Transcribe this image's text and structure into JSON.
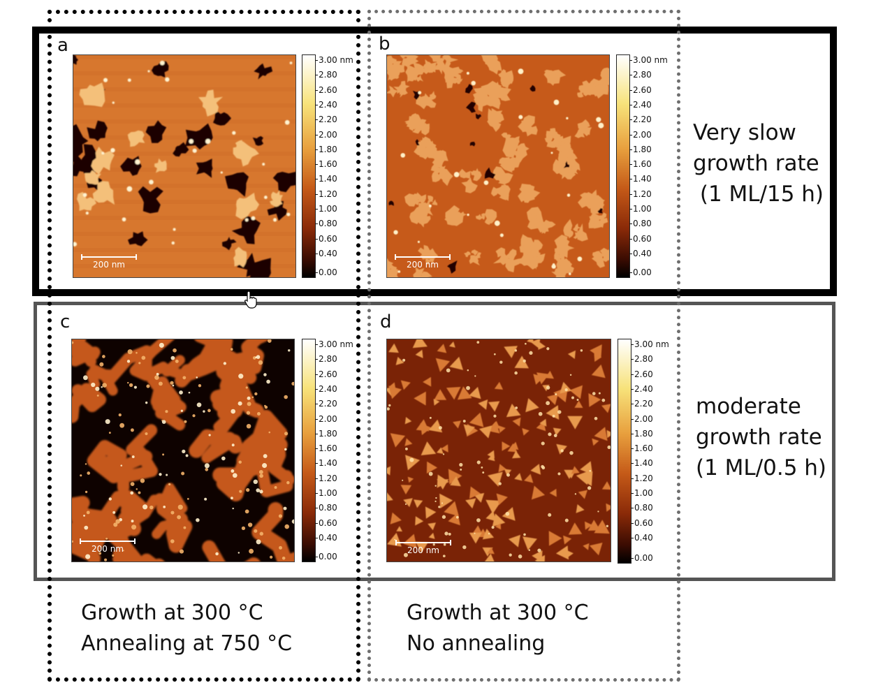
{
  "panels": [
    {
      "letter": "a",
      "scale_bar": "200 nm",
      "colorbar": [
        "3.00 nm",
        "2.80",
        "2.60",
        "2.40",
        "2.20",
        "2.00",
        "1.80",
        "1.60",
        "1.40",
        "1.20",
        "1.00",
        "0.80",
        "0.60",
        "0.40",
        "0.00"
      ]
    },
    {
      "letter": "b",
      "scale_bar": "200 nm",
      "colorbar": [
        "3.00 nm",
        "2.80",
        "2.60",
        "2.40",
        "2.20",
        "2.00",
        "1.80",
        "1.60",
        "1.40",
        "1.20",
        "1.00",
        "0.80",
        "0.60",
        "0.40",
        "0.00"
      ]
    },
    {
      "letter": "c",
      "scale_bar": "200 nm",
      "colorbar": [
        "3.00 nm",
        "2.80",
        "2.60",
        "2.40",
        "2.20",
        "2.00",
        "1.80",
        "1.60",
        "1.40",
        "1.20",
        "1.00",
        "0.80",
        "0.60",
        "0.40",
        "0.00"
      ]
    },
    {
      "letter": "d",
      "scale_bar": "200 nm",
      "colorbar": [
        "3.00 nm",
        "2.80",
        "2.60",
        "2.40",
        "2.20",
        "2.00",
        "1.80",
        "1.60",
        "1.40",
        "1.20",
        "1.00",
        "0.80",
        "0.60",
        "0.40",
        "0.00"
      ]
    }
  ],
  "row_labels": {
    "top": [
      "Very slow",
      "growth rate",
      " (1 ML/15 h)"
    ],
    "bottom": [
      "moderate",
      "growth rate",
      "(1 ML/0.5 h)"
    ]
  },
  "column_labels": {
    "left": [
      "Growth at 300 °C",
      "Annealing at 750 °C"
    ],
    "right": [
      "Growth at 300 °C",
      "No annealing"
    ]
  },
  "colors": {
    "afm_bright": "#ffffff",
    "afm_mid": "#c55a18",
    "afm_dark": "#000000"
  }
}
